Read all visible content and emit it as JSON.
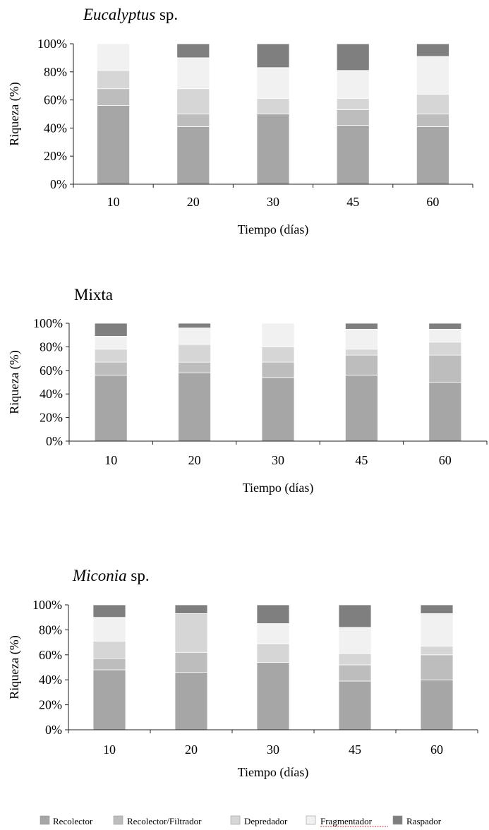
{
  "series_names": [
    "Recolector",
    "Recolector/Filtrador",
    "Depredador",
    "Fragmentador",
    "Raspador"
  ],
  "colors": {
    "Recolector": "#a6a6a6",
    "Recolector/Filtrador": "#bdbdbd",
    "Depredador": "#d6d6d6",
    "Fragmentador": "#f1f1f1",
    "Raspador": "#7f7f7f"
  },
  "chart_data": [
    {
      "type": "bar",
      "stacked": true,
      "title": "Eucalyptus sp.",
      "title_italic_part": "Eucalyptus",
      "title_plain_part": " sp.",
      "xlabel": "Tiempo (días)",
      "ylabel": "Riqueza (%)",
      "ylim": [
        0,
        100
      ],
      "yticks": [
        "0%",
        "20%",
        "40%",
        "60%",
        "80%",
        "100%"
      ],
      "categories": [
        "10",
        "20",
        "30",
        "45",
        "60"
      ],
      "series": [
        {
          "name": "Recolector",
          "values": [
            56,
            41,
            50,
            42,
            41
          ]
        },
        {
          "name": "Recolector/Filtrador",
          "values": [
            12,
            9,
            0,
            11,
            9
          ]
        },
        {
          "name": "Depredador",
          "values": [
            13,
            18,
            11,
            8,
            14
          ]
        },
        {
          "name": "Fragmentador",
          "values": [
            19,
            22,
            22,
            20,
            27
          ]
        },
        {
          "name": "Raspador",
          "values": [
            0,
            10,
            17,
            19,
            9
          ]
        }
      ]
    },
    {
      "type": "bar",
      "stacked": true,
      "title": "Mixta",
      "title_italic_part": "",
      "title_plain_part": "Mixta",
      "xlabel": "Tiempo (días)",
      "ylabel": "Riqueza (%)",
      "ylim": [
        0,
        100
      ],
      "yticks": [
        "0%",
        "20%",
        "40%",
        "60%",
        "80%",
        "100%"
      ],
      "categories": [
        "10",
        "20",
        "30",
        "45",
        "60"
      ],
      "series": [
        {
          "name": "Recolector",
          "values": [
            56,
            58,
            54,
            56,
            50
          ]
        },
        {
          "name": "Recolector/Filtrador",
          "values": [
            11,
            9,
            13,
            17,
            23
          ]
        },
        {
          "name": "Depredador",
          "values": [
            11,
            15,
            13,
            5,
            11
          ]
        },
        {
          "name": "Fragmentador",
          "values": [
            11,
            14,
            20,
            17,
            11
          ]
        },
        {
          "name": "Raspador",
          "values": [
            11,
            4,
            0,
            5,
            5
          ]
        }
      ]
    },
    {
      "type": "bar",
      "stacked": true,
      "title": "Miconia sp.",
      "title_italic_part": "Miconia",
      "title_plain_part": " sp.",
      "xlabel": "Tiempo (días)",
      "ylabel": "Riqueza (%)",
      "ylim": [
        0,
        100
      ],
      "yticks": [
        "0%",
        "20%",
        "40%",
        "60%",
        "80%",
        "100%"
      ],
      "categories": [
        "10",
        "20",
        "30",
        "45",
        "60"
      ],
      "series": [
        {
          "name": "Recolector",
          "values": [
            48,
            46,
            54,
            39,
            40
          ]
        },
        {
          "name": "Recolector/Filtrador",
          "values": [
            9,
            16,
            0,
            13,
            20
          ]
        },
        {
          "name": "Depredador",
          "values": [
            14,
            31,
            15,
            9,
            7
          ]
        },
        {
          "name": "Fragmentador",
          "values": [
            19,
            0,
            16,
            21,
            26
          ]
        },
        {
          "name": "Raspador",
          "values": [
            10,
            7,
            15,
            18,
            7
          ]
        }
      ]
    }
  ]
}
